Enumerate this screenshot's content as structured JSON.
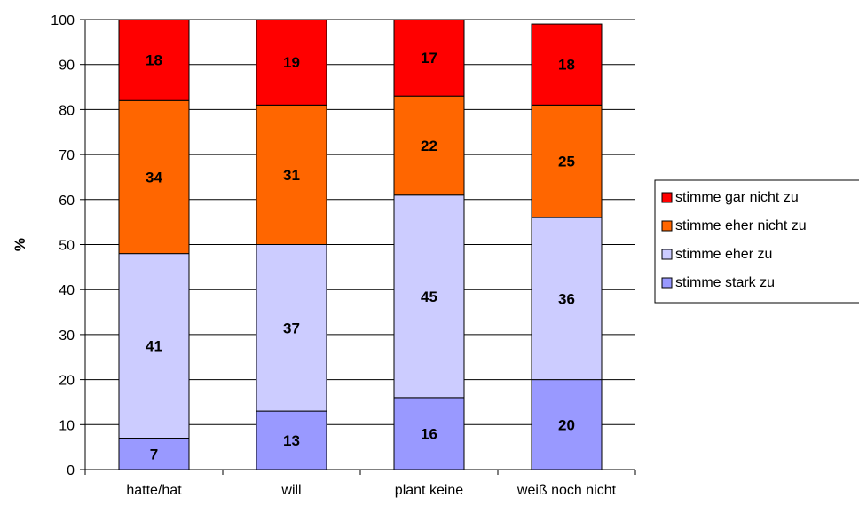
{
  "chart_data": {
    "type": "bar",
    "stacked": true,
    "categories": [
      "hatte/hat",
      "will",
      "plant keine",
      "weiß noch nicht"
    ],
    "series": [
      {
        "name": "stimme stark zu",
        "values": [
          7,
          13,
          16,
          20
        ],
        "color": "#9999ff"
      },
      {
        "name": "stimme eher zu",
        "values": [
          41,
          37,
          45,
          36
        ],
        "color": "#ccccff"
      },
      {
        "name": "stimme eher nicht zu",
        "values": [
          34,
          31,
          22,
          25
        ],
        "color": "#ff6600"
      },
      {
        "name": "stimme gar nicht zu",
        "values": [
          18,
          19,
          17,
          18
        ],
        "color": "#ff0000"
      }
    ],
    "legend_order": [
      "stimme gar nicht zu",
      "stimme eher nicht zu",
      "stimme eher zu",
      "stimme stark zu"
    ],
    "ylabel": "%",
    "ylim": [
      0,
      100
    ],
    "yticks": [
      0,
      10,
      20,
      30,
      40,
      50,
      60,
      70,
      80,
      90,
      100
    ],
    "grid": true,
    "legend_position": "right"
  }
}
